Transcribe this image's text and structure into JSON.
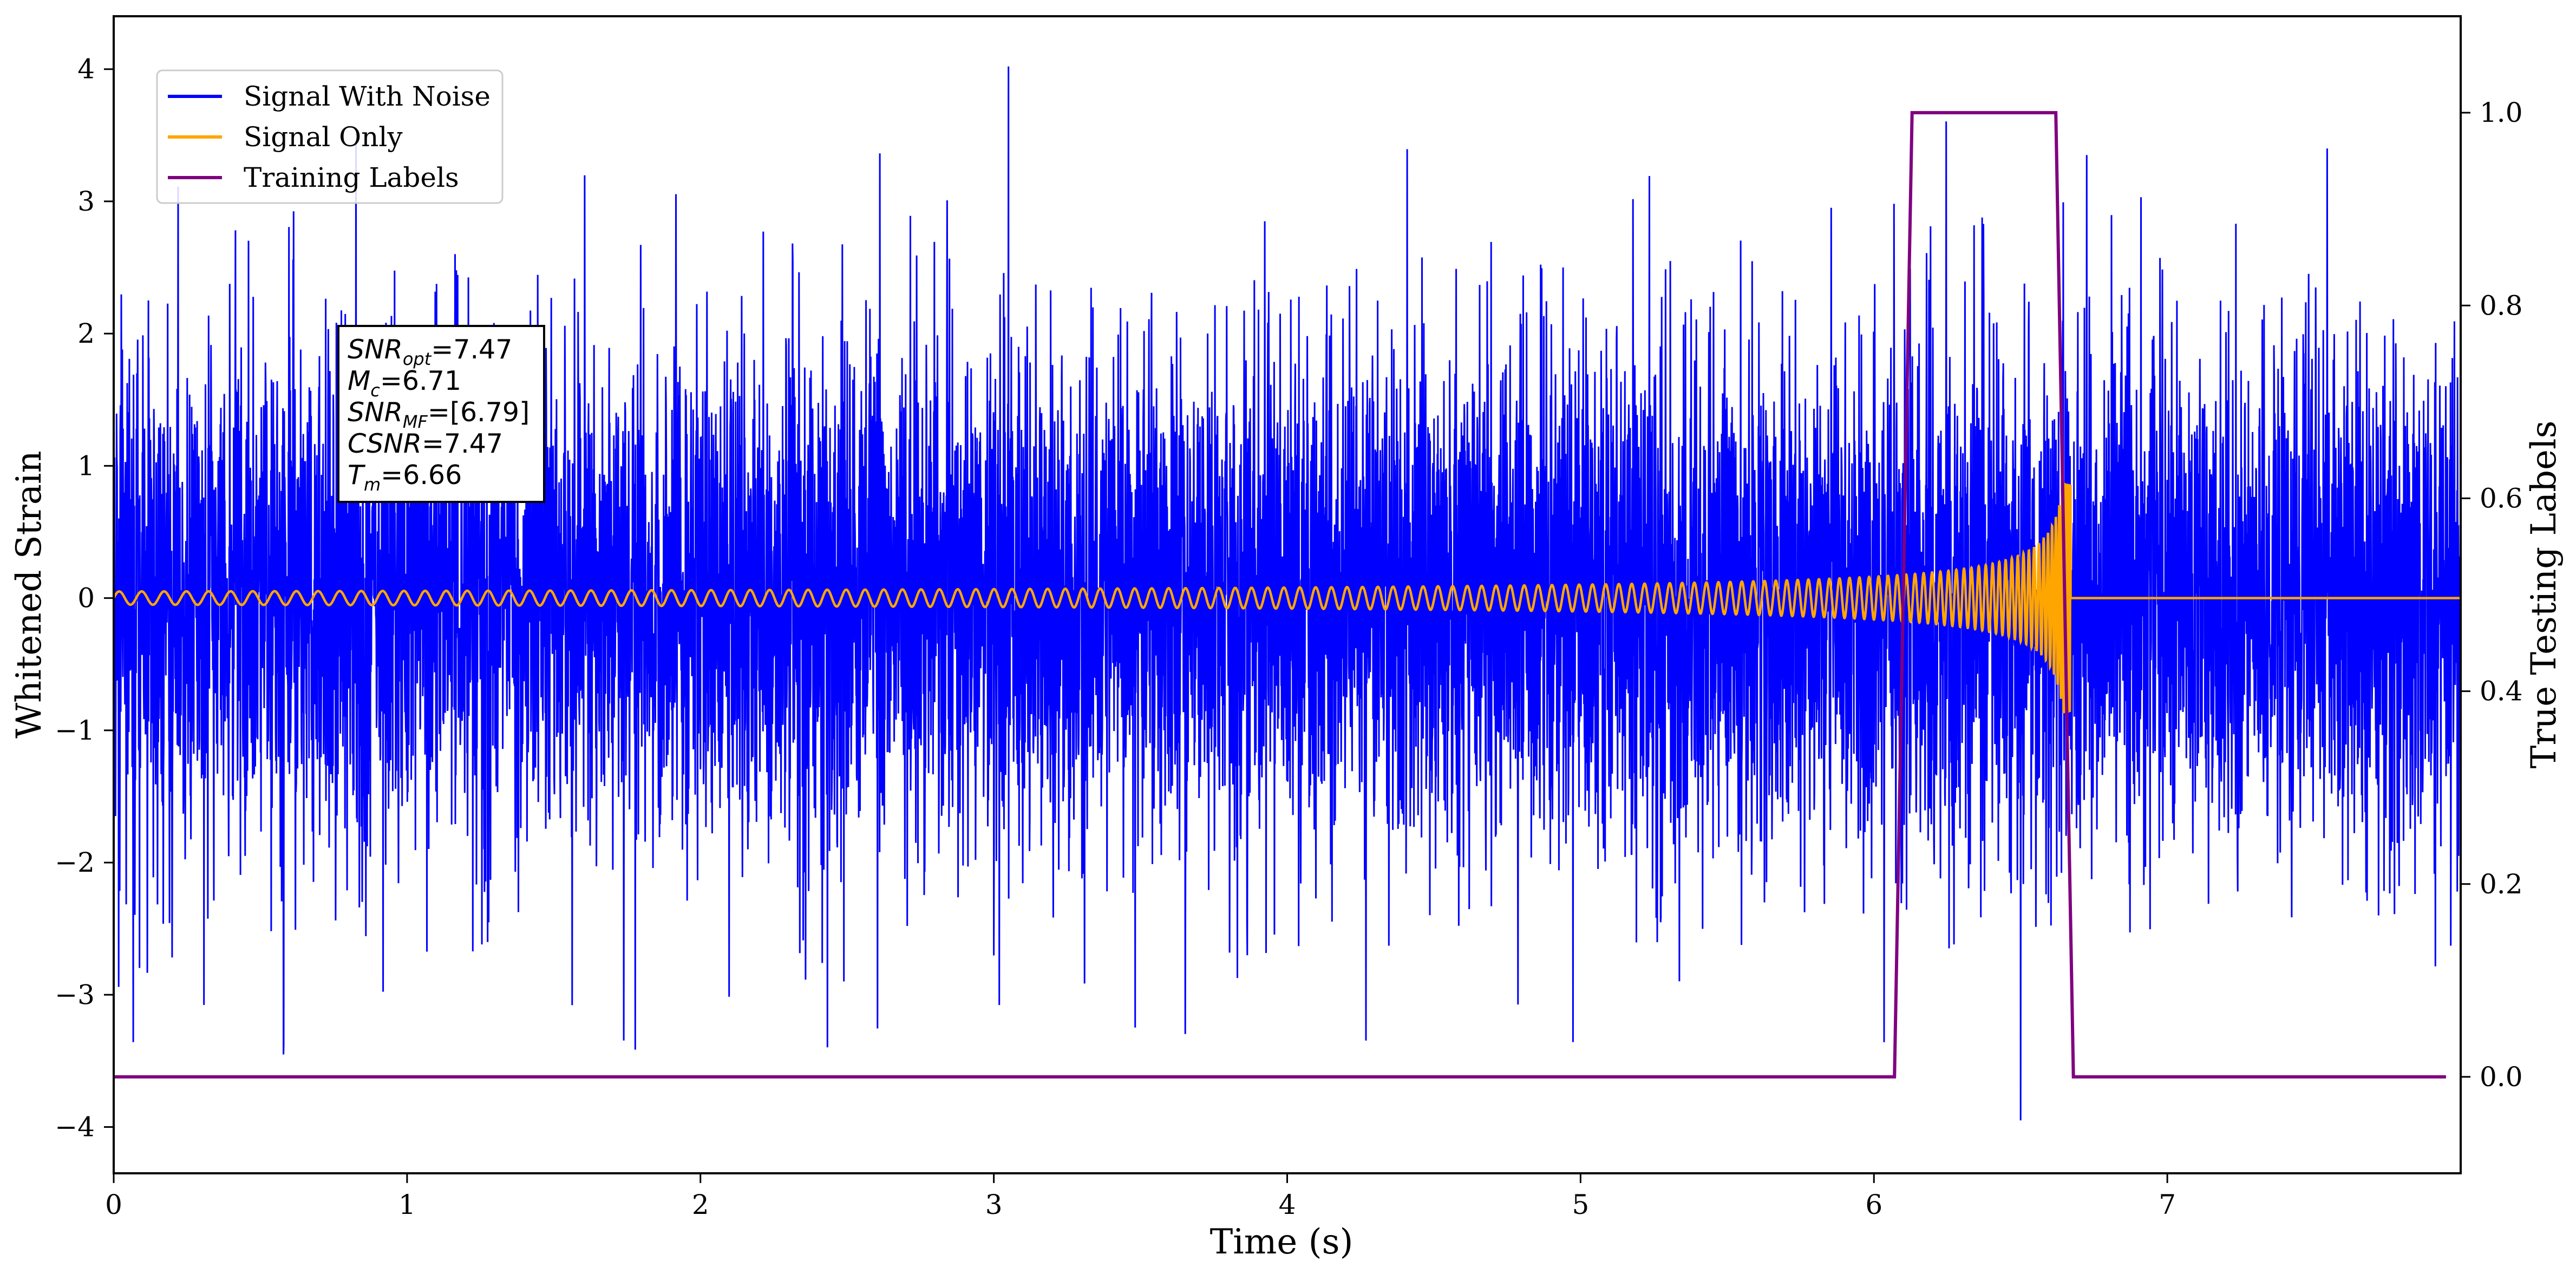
{
  "chart_data": {
    "type": "line",
    "xlabel": "Time (s)",
    "ylabel": "Whitened Strain",
    "y2label": "True Testing Labels",
    "xlim": [
      0,
      8.0
    ],
    "ylim": [
      -4.35,
      4.4
    ],
    "y2lim": [
      -0.1,
      1.1
    ],
    "xticks": [
      0,
      1,
      2,
      3,
      4,
      5,
      6,
      7
    ],
    "yticks": [
      -4,
      -3,
      -2,
      -1,
      0,
      1,
      2,
      3,
      4
    ],
    "y2ticks": [
      0.0,
      0.2,
      0.4,
      0.6,
      0.8,
      1.0
    ],
    "grid": false,
    "legend_position": "upper-left",
    "legend": [
      {
        "label": "Signal With Noise",
        "color": "#0000ff"
      },
      {
        "label": "Signal Only",
        "color": "#ffa500"
      },
      {
        "label": "Training Labels",
        "color": "#800080"
      }
    ],
    "series": [
      {
        "name": "Signal With Noise",
        "axis": "left",
        "description": "dense noisy whitened strain, roughly within ±2.5 with spikes",
        "x_range": [
          0,
          8.0
        ],
        "peak_max": 4.02,
        "peak_max_x": 3.05,
        "peak_min": -3.95,
        "peak_min_x": 6.5
      },
      {
        "name": "Signal Only",
        "axis": "left",
        "description": "gravitational-wave chirp, amplitude growing until merger then flat at 0",
        "start_amplitude": 0.05,
        "peak_amplitude": 0.87,
        "merger_time": 6.67,
        "end_time": 8.0
      },
      {
        "name": "Training Labels",
        "axis": "right",
        "x": [
          0.0,
          6.07,
          6.13,
          6.62,
          6.68,
          7.95
        ],
        "y": [
          0.0,
          0.0,
          1.0,
          1.0,
          0.0,
          0.0
        ]
      }
    ],
    "annotation": {
      "lines": [
        {
          "label": "SNR",
          "sub": "opt",
          "value": "=7.47"
        },
        {
          "label": "M",
          "sub": "c",
          "value": "=6.71"
        },
        {
          "label": "SNR",
          "sub": "MF",
          "value": "=[6.79]"
        },
        {
          "label": "CSNR",
          "sub": "",
          "value": "=7.47"
        },
        {
          "label": "T",
          "sub": "m",
          "value": "=6.66"
        }
      ]
    }
  }
}
